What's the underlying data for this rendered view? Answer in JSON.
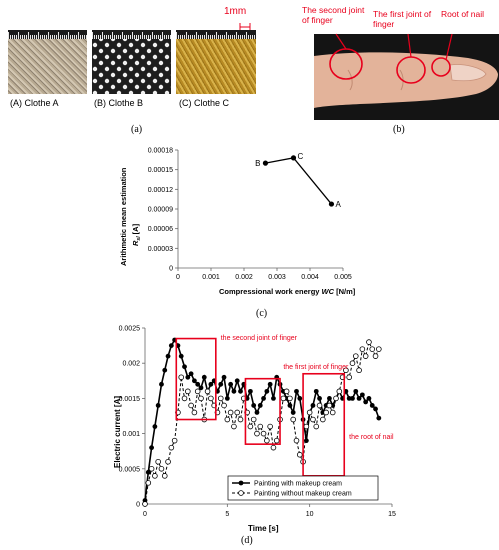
{
  "panel_a": {
    "scale_label": "1mm",
    "clothes": [
      {
        "label": "(A) Clothe A"
      },
      {
        "label": "(B) Clothe B"
      },
      {
        "label": "(C) Clothe C"
      }
    ],
    "caption": "(a)"
  },
  "panel_b": {
    "labels": {
      "second_joint": "The second joint of finger",
      "first_joint": "The first joint of finger",
      "nail": "Root of nail"
    },
    "caption": "(b)"
  },
  "panel_c": {
    "caption": "(c)"
  },
  "panel_d": {
    "caption": "(d)"
  },
  "colors": {
    "annotation_red": "#e8001c",
    "skin": "#e3b39a",
    "background": "#ffffff"
  },
  "chart_data": [
    {
      "type": "line",
      "xlabel": "Compressional work energy  WC  [N/m]",
      "ylabel": "Arithmetic mean estimation  R_sl  [A]",
      "xlim": [
        0,
        0.005
      ],
      "ylim": [
        0,
        0.00018
      ],
      "xticks": [
        "0",
        "0.001",
        "0.002",
        "0.003",
        "0.004",
        "0.005"
      ],
      "yticks": [
        "0",
        "0.00003",
        "0.00006",
        "0.00009",
        "0.00012",
        "0.00015",
        "0.00018"
      ],
      "points": [
        {
          "label": "B",
          "x": 0.00265,
          "y": 0.00016
        },
        {
          "label": "C",
          "x": 0.0035,
          "y": 0.000168
        },
        {
          "label": "A",
          "x": 0.00465,
          "y": 9.75e-05
        }
      ]
    },
    {
      "type": "line",
      "xlabel": "Time      [s]",
      "ylabel": "Electric current     [A]",
      "xlim": [
        0,
        15
      ],
      "ylim": [
        0,
        0.0025
      ],
      "xticks": [
        "0",
        "5",
        "10",
        "15"
      ],
      "yticks": [
        "0",
        "0.0005",
        "0.001",
        "0.0015",
        "0.002",
        "0.0025"
      ],
      "legend_position": "bottom-right",
      "series": [
        {
          "name": "Painting with makeup cream",
          "marker": "filled-circle",
          "line": "solid",
          "x": [
            0,
            0.2,
            0.4,
            0.6,
            0.8,
            1.0,
            1.2,
            1.4,
            1.6,
            1.8,
            2.0,
            2.2,
            2.4,
            2.6,
            2.8,
            3.0,
            3.2,
            3.4,
            3.6,
            3.8,
            4.0,
            4.2,
            4.4,
            4.6,
            4.8,
            5.0,
            5.2,
            5.4,
            5.6,
            5.8,
            6.0,
            6.2,
            6.4,
            6.6,
            6.8,
            7.0,
            7.2,
            7.4,
            7.6,
            7.8,
            8.0,
            8.2,
            8.4,
            8.6,
            8.8,
            9.0,
            9.2,
            9.4,
            9.6,
            9.8,
            10.0,
            10.2,
            10.4,
            10.6,
            10.8,
            11.0,
            11.2,
            11.4,
            11.6,
            11.8,
            12.0,
            12.2,
            12.4,
            12.6,
            12.8,
            13.0,
            13.2,
            13.4,
            13.6,
            13.8,
            14.0,
            14.2
          ],
          "y": [
            5e-05,
            0.00045,
            0.0008,
            0.0011,
            0.0014,
            0.0017,
            0.0019,
            0.0021,
            0.00225,
            0.00233,
            0.00225,
            0.0021,
            0.00195,
            0.0018,
            0.00185,
            0.00175,
            0.0017,
            0.00165,
            0.0018,
            0.0016,
            0.0017,
            0.00175,
            0.0016,
            0.0017,
            0.0018,
            0.0015,
            0.0017,
            0.0016,
            0.00175,
            0.0016,
            0.0017,
            0.0015,
            0.0016,
            0.0014,
            0.0013,
            0.0014,
            0.0015,
            0.0016,
            0.0017,
            0.0015,
            0.0018,
            0.0017,
            0.0016,
            0.0015,
            0.0014,
            0.0013,
            0.0016,
            0.0015,
            0.0012,
            0.0009,
            0.0013,
            0.0014,
            0.0016,
            0.0015,
            0.0013,
            0.0014,
            0.0015,
            0.0014,
            0.0015,
            0.0016,
            0.0015,
            0.0016,
            0.0015,
            0.0015,
            0.0016,
            0.0015,
            0.00155,
            0.00145,
            0.0015,
            0.0014,
            0.00135,
            0.00122
          ]
        },
        {
          "name": "Painting without makeup cream",
          "marker": "open-circle",
          "line": "dashed",
          "x": [
            0,
            0.2,
            0.4,
            0.6,
            0.8,
            1.0,
            1.2,
            1.4,
            1.6,
            1.8,
            2.0,
            2.2,
            2.4,
            2.6,
            2.8,
            3.0,
            3.2,
            3.4,
            3.6,
            3.8,
            4.0,
            4.2,
            4.4,
            4.6,
            4.8,
            5.0,
            5.2,
            5.4,
            5.6,
            5.8,
            6.0,
            6.2,
            6.4,
            6.6,
            6.8,
            7.0,
            7.2,
            7.4,
            7.6,
            7.8,
            8.0,
            8.2,
            8.4,
            8.6,
            8.8,
            9.0,
            9.2,
            9.4,
            9.6,
            9.8,
            10.0,
            10.2,
            10.4,
            10.6,
            10.8,
            11.0,
            11.2,
            11.4,
            11.6,
            11.8,
            12.0,
            12.2,
            12.4,
            12.6,
            12.8,
            13.0,
            13.2,
            13.4,
            13.6,
            13.8,
            14.0,
            14.2
          ],
          "y": [
            0.0,
            0.0003,
            0.0005,
            0.0004,
            0.0006,
            0.0005,
            0.0004,
            0.0006,
            0.0008,
            0.0009,
            0.0013,
            0.0018,
            0.0015,
            0.0016,
            0.0014,
            0.0013,
            0.0016,
            0.0015,
            0.0012,
            0.0016,
            0.0015,
            0.0014,
            0.0013,
            0.0015,
            0.0014,
            0.0012,
            0.0013,
            0.0011,
            0.0013,
            0.0012,
            0.0015,
            0.0013,
            0.0011,
            0.0012,
            0.001,
            0.0011,
            0.001,
            0.0009,
            0.0011,
            0.0008,
            0.0009,
            0.0012,
            0.0015,
            0.0016,
            0.0015,
            0.0012,
            0.0009,
            0.0007,
            0.0006,
            0.0011,
            0.0013,
            0.0012,
            0.0011,
            0.0014,
            0.0012,
            0.0013,
            0.0014,
            0.0013,
            0.0015,
            0.0016,
            0.0018,
            0.0019,
            0.0018,
            0.002,
            0.0021,
            0.0019,
            0.0022,
            0.0021,
            0.0023,
            0.0022,
            0.0021,
            0.0022
          ]
        }
      ],
      "annotations": [
        {
          "text": "the second joint of finger"
        },
        {
          "text": "the first joint of finger"
        },
        {
          "text": "the root of nail"
        }
      ]
    }
  ]
}
